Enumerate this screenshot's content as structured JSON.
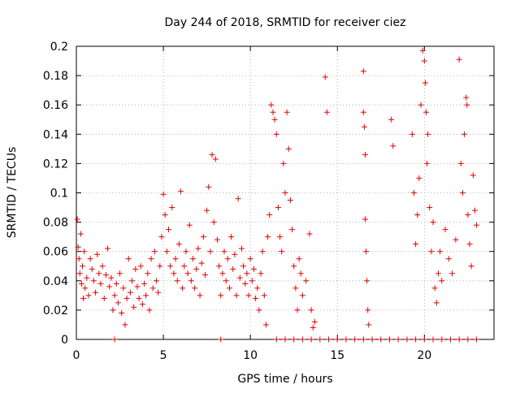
{
  "chart_data": {
    "type": "scatter",
    "title": "Day 244 of 2018, SRMTID for receiver ciez",
    "xlabel": "GPS time / hours",
    "ylabel": "SRMTID / TECUs",
    "xlim": [
      0,
      24
    ],
    "ylim": [
      0,
      0.2
    ],
    "xticks": [
      0,
      5,
      10,
      15,
      20
    ],
    "xtick_labels": [
      "0",
      "5",
      "10",
      "15",
      "20"
    ],
    "yticks": [
      0,
      0.02,
      0.04,
      0.06,
      0.08,
      0.1,
      0.12,
      0.14,
      0.16,
      0.18,
      0.2
    ],
    "ytick_labels": [
      "0",
      "0.02",
      "0.04",
      "0.06",
      "0.08",
      "0.1",
      "0.12",
      "0.14",
      "0.16",
      "0.18",
      "0.2"
    ],
    "grid": true,
    "marker": "+",
    "marker_color": "#e00000",
    "series": [
      {
        "values": [
          [
            0.05,
            0.082
          ],
          [
            0.1,
            0.063
          ],
          [
            0.15,
            0.055
          ],
          [
            0.2,
            0.045
          ],
          [
            0.25,
            0.072
          ],
          [
            0.3,
            0.038
          ],
          [
            0.35,
            0.05
          ],
          [
            0.4,
            0.028
          ],
          [
            0.45,
            0.06
          ],
          [
            0.5,
            0.035
          ],
          [
            0.6,
            0.042
          ],
          [
            0.7,
            0.03
          ],
          [
            0.8,
            0.055
          ],
          [
            0.9,
            0.048
          ],
          [
            1.0,
            0.04
          ],
          [
            1.1,
            0.032
          ],
          [
            1.2,
            0.058
          ],
          [
            1.3,
            0.045
          ],
          [
            1.4,
            0.038
          ],
          [
            1.5,
            0.05
          ],
          [
            1.6,
            0.028
          ],
          [
            1.7,
            0.044
          ],
          [
            1.8,
            0.062
          ],
          [
            1.9,
            0.036
          ],
          [
            2.0,
            0.042
          ],
          [
            2.1,
            0.02
          ],
          [
            2.2,
            0.03
          ],
          [
            2.3,
            0.038
          ],
          [
            2.4,
            0.025
          ],
          [
            2.5,
            0.045
          ],
          [
            2.6,
            0.018
          ],
          [
            2.7,
            0.035
          ],
          [
            2.8,
            0.01
          ],
          [
            2.9,
            0.028
          ],
          [
            3.0,
            0.055
          ],
          [
            3.1,
            0.032
          ],
          [
            3.2,
            0.04
          ],
          [
            3.3,
            0.022
          ],
          [
            3.4,
            0.048
          ],
          [
            3.5,
            0.036
          ],
          [
            3.6,
            0.028
          ],
          [
            3.7,
            0.05
          ],
          [
            3.8,
            0.024
          ],
          [
            3.9,
            0.038
          ],
          [
            4.0,
            0.03
          ],
          [
            4.1,
            0.045
          ],
          [
            4.2,
            0.02
          ],
          [
            4.3,
            0.055
          ],
          [
            4.4,
            0.035
          ],
          [
            4.5,
            0.06
          ],
          [
            4.6,
            0.04
          ],
          [
            4.7,
            0.032
          ],
          [
            4.8,
            0.05
          ],
          [
            4.9,
            0.07
          ],
          [
            5.0,
            0.099
          ],
          [
            5.1,
            0.085
          ],
          [
            5.2,
            0.06
          ],
          [
            5.3,
            0.075
          ],
          [
            5.4,
            0.05
          ],
          [
            5.5,
            0.09
          ],
          [
            5.6,
            0.045
          ],
          [
            5.7,
            0.055
          ],
          [
            5.8,
            0.04
          ],
          [
            5.9,
            0.065
          ],
          [
            6.0,
            0.101
          ],
          [
            6.1,
            0.035
          ],
          [
            6.2,
            0.05
          ],
          [
            6.3,
            0.06
          ],
          [
            6.4,
            0.045
          ],
          [
            6.5,
            0.078
          ],
          [
            6.6,
            0.04
          ],
          [
            6.7,
            0.055
          ],
          [
            6.8,
            0.035
          ],
          [
            6.9,
            0.048
          ],
          [
            7.0,
            0.062
          ],
          [
            7.1,
            0.03
          ],
          [
            7.2,
            0.052
          ],
          [
            7.3,
            0.07
          ],
          [
            7.4,
            0.044
          ],
          [
            7.5,
            0.088
          ],
          [
            7.6,
            0.104
          ],
          [
            7.7,
            0.06
          ],
          [
            7.8,
            0.126
          ],
          [
            7.9,
            0.08
          ],
          [
            8.0,
            0.123
          ],
          [
            8.1,
            0.068
          ],
          [
            8.2,
            0.05
          ],
          [
            8.3,
            0.03
          ],
          [
            8.4,
            0.045
          ],
          [
            8.5,
            0.06
          ],
          [
            8.6,
            0.04
          ],
          [
            8.7,
            0.055
          ],
          [
            8.8,
            0.035
          ],
          [
            8.9,
            0.07
          ],
          [
            9.0,
            0.048
          ],
          [
            9.1,
            0.058
          ],
          [
            9.2,
            0.03
          ],
          [
            9.3,
            0.096
          ],
          [
            9.4,
            0.042
          ],
          [
            9.5,
            0.062
          ],
          [
            9.6,
            0.05
          ],
          [
            9.7,
            0.038
          ],
          [
            9.8,
            0.045
          ],
          [
            9.9,
            0.03
          ],
          [
            10.0,
            0.055
          ],
          [
            10.1,
            0.04
          ],
          [
            10.2,
            0.048
          ],
          [
            10.3,
            0.028
          ],
          [
            10.4,
            0.035
          ],
          [
            10.5,
            0.02
          ],
          [
            10.6,
            0.045
          ],
          [
            10.7,
            0.06
          ],
          [
            10.8,
            0.03
          ],
          [
            10.9,
            0.01
          ],
          [
            11.0,
            0.07
          ],
          [
            11.1,
            0.085
          ],
          [
            11.2,
            0.16
          ],
          [
            11.3,
            0.155
          ],
          [
            11.4,
            0.15
          ],
          [
            11.5,
            0.14
          ],
          [
            11.6,
            0.09
          ],
          [
            11.7,
            0.07
          ],
          [
            11.8,
            0.06
          ],
          [
            11.9,
            0.12
          ],
          [
            12.0,
            0.1
          ],
          [
            12.1,
            0.155
          ],
          [
            12.2,
            0.13
          ],
          [
            12.3,
            0.095
          ],
          [
            12.4,
            0.075
          ],
          [
            12.5,
            0.05
          ],
          [
            12.6,
            0.035
          ],
          [
            12.7,
            0.02
          ],
          [
            12.8,
            0.055
          ],
          [
            12.9,
            0.045
          ],
          [
            13.0,
            0.03
          ],
          [
            13.2,
            0.04
          ],
          [
            13.4,
            0.072
          ],
          [
            13.5,
            0.02
          ],
          [
            13.6,
            0.008
          ],
          [
            13.7,
            0.012
          ],
          [
            14.3,
            0.179
          ],
          [
            14.4,
            0.155
          ],
          [
            16.5,
            0.183
          ],
          [
            16.5,
            0.155
          ],
          [
            16.55,
            0.145
          ],
          [
            16.6,
            0.126
          ],
          [
            16.6,
            0.082
          ],
          [
            16.65,
            0.06
          ],
          [
            16.7,
            0.04
          ],
          [
            16.75,
            0.02
          ],
          [
            16.8,
            0.01
          ],
          [
            18.1,
            0.15
          ],
          [
            18.2,
            0.132
          ],
          [
            19.3,
            0.14
          ],
          [
            19.4,
            0.1
          ],
          [
            19.5,
            0.065
          ],
          [
            19.6,
            0.085
          ],
          [
            19.7,
            0.11
          ],
          [
            19.8,
            0.16
          ],
          [
            19.9,
            0.197
          ],
          [
            20.0,
            0.19
          ],
          [
            20.05,
            0.175
          ],
          [
            20.1,
            0.155
          ],
          [
            20.15,
            0.12
          ],
          [
            20.2,
            0.14
          ],
          [
            20.3,
            0.09
          ],
          [
            20.4,
            0.06
          ],
          [
            20.5,
            0.08
          ],
          [
            20.6,
            0.035
          ],
          [
            20.7,
            0.025
          ],
          [
            20.8,
            0.045
          ],
          [
            20.9,
            0.06
          ],
          [
            21.0,
            0.04
          ],
          [
            21.2,
            0.075
          ],
          [
            21.4,
            0.055
          ],
          [
            21.6,
            0.045
          ],
          [
            21.8,
            0.068
          ],
          [
            22.0,
            0.191
          ],
          [
            22.1,
            0.12
          ],
          [
            22.2,
            0.1
          ],
          [
            22.3,
            0.14
          ],
          [
            22.4,
            0.165
          ],
          [
            22.45,
            0.16
          ],
          [
            22.5,
            0.085
          ],
          [
            22.6,
            0.065
          ],
          [
            22.7,
            0.05
          ],
          [
            22.8,
            0.112
          ],
          [
            22.9,
            0.088
          ],
          [
            23.0,
            0.078
          ]
        ]
      },
      {
        "values": [
          [
            2.2,
            0
          ],
          [
            8.3,
            0
          ],
          [
            11.5,
            0
          ],
          [
            12.0,
            0
          ],
          [
            12.5,
            0
          ],
          [
            13.0,
            0
          ],
          [
            13.5,
            0
          ],
          [
            14.0,
            0
          ],
          [
            14.5,
            0
          ],
          [
            15.0,
            0
          ],
          [
            15.5,
            0
          ],
          [
            16.0,
            0
          ],
          [
            16.5,
            0
          ],
          [
            17.0,
            0
          ],
          [
            17.5,
            0
          ],
          [
            18.0,
            0
          ],
          [
            18.5,
            0
          ],
          [
            19.0,
            0
          ],
          [
            19.5,
            0
          ],
          [
            20.0,
            0
          ],
          [
            20.5,
            0
          ],
          [
            21.0,
            0
          ],
          [
            21.5,
            0
          ],
          [
            22.0,
            0
          ],
          [
            22.5,
            0
          ],
          [
            23.0,
            0
          ]
        ]
      }
    ]
  }
}
